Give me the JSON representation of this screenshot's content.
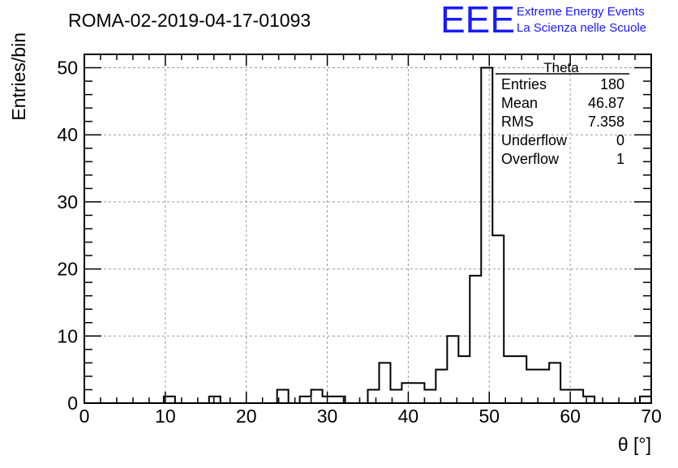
{
  "header": {
    "run_title": "ROMA-02-2019-04-17-01093",
    "logo_text": "EEE",
    "logo_line1": "Extreme Energy Events",
    "logo_line2": "La Scienza nelle Scuole",
    "logo_color": "#1a1aff"
  },
  "stats_box": {
    "title": "Theta",
    "rows": [
      {
        "label": "Entries",
        "value": "180"
      },
      {
        "label": "Mean",
        "value": "46.87"
      },
      {
        "label": "RMS",
        "value": "7.358"
      },
      {
        "label": "Underflow",
        "value": "0"
      },
      {
        "label": "Overflow",
        "value": "1"
      }
    ]
  },
  "chart_data": {
    "type": "bar",
    "style": "step-histogram",
    "title": "ROMA-02-2019-04-17-01093",
    "xlabel": "θ [°]",
    "ylabel": "Entries/bin",
    "xlim": [
      0,
      70
    ],
    "ylim": [
      0,
      52
    ],
    "xticks": [
      0,
      10,
      20,
      30,
      40,
      50,
      60,
      70
    ],
    "yticks": [
      0,
      10,
      20,
      30,
      40,
      50
    ],
    "grid": true,
    "line_color": "#000000",
    "grid_color": "#999999",
    "bin_width": 1.4,
    "bin_edges_start": 0,
    "values": [
      0,
      0,
      0,
      0,
      0,
      0,
      0,
      1,
      0,
      0,
      0,
      1,
      0,
      0,
      0,
      0,
      0,
      2,
      0,
      1,
      2,
      1,
      1,
      0,
      0,
      2,
      6,
      2,
      3,
      3,
      2,
      5,
      10,
      7,
      19,
      50,
      25,
      7,
      7,
      5,
      5,
      6,
      2,
      2,
      1,
      0,
      0,
      0,
      0,
      1
    ]
  }
}
